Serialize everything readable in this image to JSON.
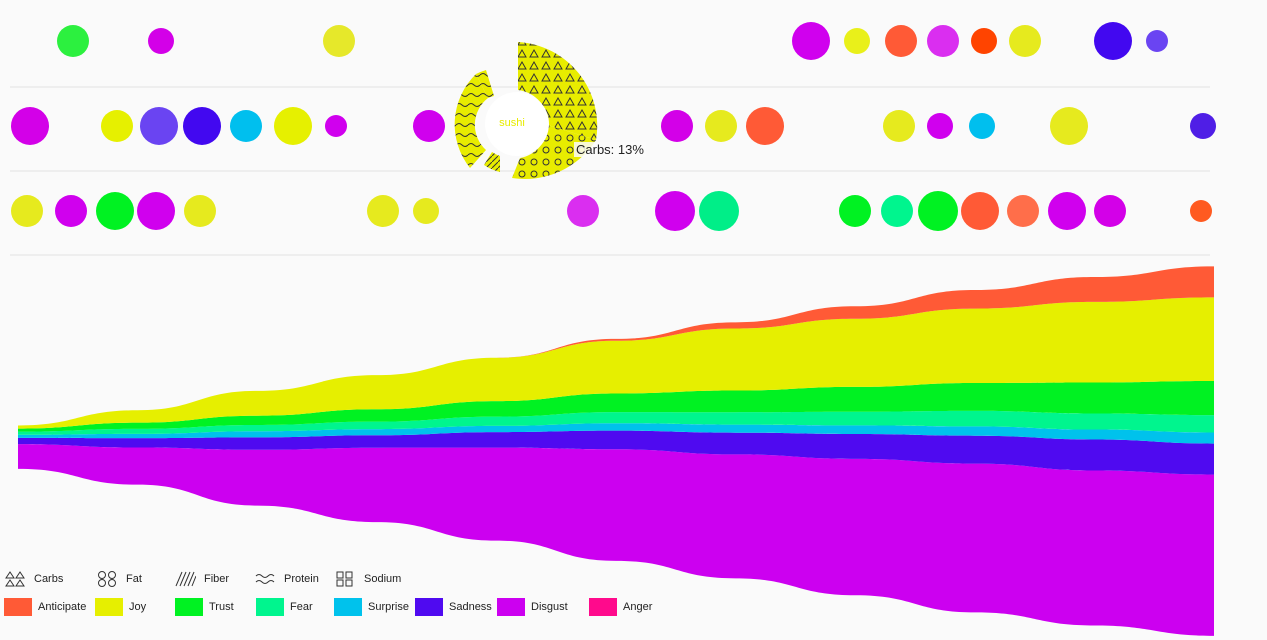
{
  "tooltip": {
    "text": "Carbs: 13%"
  },
  "selected_food": {
    "label": "sushi",
    "color": "#e8ec00"
  },
  "nutrients": [
    {
      "name": "Carbs",
      "icon": "triangles-icon"
    },
    {
      "name": "Fat",
      "icon": "circles-icon"
    },
    {
      "name": "Fiber",
      "icon": "diagonal-lines-icon"
    },
    {
      "name": "Protein",
      "icon": "waves-icon"
    },
    {
      "name": "Sodium",
      "icon": "squares-icon"
    }
  ],
  "chart_data": {
    "type": "area",
    "stacked": "streamgraph",
    "legend_placement": "bottom-left",
    "grid": false,
    "emotions": [
      {
        "name": "Anticipate",
        "color": "#ff5a36"
      },
      {
        "name": "Joy",
        "color": "#e6ef00"
      },
      {
        "name": "Trust",
        "color": "#00f222"
      },
      {
        "name": "Fear",
        "color": "#00f58e"
      },
      {
        "name": "Surprise",
        "color": "#00c2ec"
      },
      {
        "name": "Sadness",
        "color": "#4f0af0"
      },
      {
        "name": "Disgust",
        "color": "#cc00f0"
      },
      {
        "name": "Anger",
        "color": "#ff0a8c"
      }
    ],
    "series": [
      {
        "name": "Disgust",
        "values": [
          4,
          6,
          9,
          12,
          15,
          18,
          20,
          22,
          24,
          25,
          26
        ]
      },
      {
        "name": "Sadness",
        "values": [
          1,
          1.5,
          2,
          2,
          2.5,
          3,
          3.5,
          4,
          4.5,
          5,
          5
        ]
      },
      {
        "name": "Surprise",
        "values": [
          0.5,
          0.7,
          1,
          1,
          1,
          1.2,
          1.3,
          1.4,
          1.5,
          1.6,
          1.8
        ]
      },
      {
        "name": "Fear",
        "values": [
          0.5,
          0.8,
          1,
          1.2,
          1.5,
          1.8,
          2,
          2.2,
          2.5,
          2.6,
          2.8
        ]
      },
      {
        "name": "Trust",
        "values": [
          0.5,
          1,
          1.5,
          2,
          2.5,
          3,
          3.5,
          4,
          4.5,
          5,
          5.5
        ]
      },
      {
        "name": "Joy",
        "values": [
          0.5,
          2,
          4,
          5.5,
          7,
          8.5,
          10,
          11,
          12,
          13,
          13.5
        ]
      },
      {
        "name": "Anticipate",
        "values": [
          0,
          0,
          0,
          0,
          0,
          0.3,
          1,
          2,
          3,
          4,
          5
        ]
      },
      {
        "name": "Anger",
        "values": [
          0,
          0,
          0,
          0,
          0,
          0,
          0,
          0,
          0,
          0,
          0
        ]
      }
    ],
    "food_rows": [
      [
        {
          "c": "#2cf03f",
          "s": 3
        },
        {
          "c": "#d300e8",
          "s": 2
        },
        {
          "c": "#e6e82a",
          "s": 3
        },
        {
          "c": "#d000ee",
          "s": 5
        },
        {
          "c": "#e9f01a",
          "s": 2
        },
        {
          "c": "#ff5a36",
          "s": 3
        },
        {
          "c": "#da2ef0",
          "s": 3
        },
        {
          "c": "#ff4400",
          "s": 2
        },
        {
          "c": "#e6ea1e",
          "s": 3
        },
        {
          "c": "#4208f0",
          "s": 5
        },
        {
          "c": "#6a44f2",
          "s": 1
        }
      ],
      [
        {
          "c": "#d300e8",
          "s": 5
        },
        {
          "c": "#e6f000",
          "s": 3
        },
        {
          "c": "#6a44f2",
          "s": 5
        },
        {
          "c": "#4208f0",
          "s": 5
        },
        {
          "c": "#00bfee",
          "s": 3
        },
        {
          "c": "#e6f000",
          "s": 5
        },
        {
          "c": "#d000ee",
          "s": 1
        },
        {
          "c": "#d000ee",
          "s": 3
        },
        {
          "c": "#d300e8",
          "s": 3
        },
        {
          "c": "#e6ea1e",
          "s": 3
        },
        {
          "c": "#ff5a36",
          "s": 5
        },
        {
          "c": "#e6ea1e",
          "s": 3
        },
        {
          "c": "#d000ee",
          "s": 2
        },
        {
          "c": "#00bfee",
          "s": 2
        },
        {
          "c": "#e6ea1e",
          "s": 5
        },
        {
          "c": "#4f1ee6",
          "s": 2
        }
      ],
      [
        {
          "c": "#e6ea1e",
          "s": 3
        },
        {
          "c": "#d000ee",
          "s": 3
        },
        {
          "c": "#00f222",
          "s": 5
        },
        {
          "c": "#d000ee",
          "s": 5
        },
        {
          "c": "#e6ea1e",
          "s": 3
        },
        {
          "c": "#e6ea1e",
          "s": 3
        },
        {
          "c": "#e6ea1e",
          "s": 2
        },
        {
          "c": "#da2ef0",
          "s": 3
        },
        {
          "c": "#d000ee",
          "s": 6
        },
        {
          "c": "#00ee88",
          "s": 6
        },
        {
          "c": "#00f222",
          "s": 3
        },
        {
          "c": "#00f58e",
          "s": 3
        },
        {
          "c": "#00f222",
          "s": 6
        },
        {
          "c": "#ff5a36",
          "s": 5
        },
        {
          "c": "#ff6e4a",
          "s": 3
        },
        {
          "c": "#d000ee",
          "s": 5
        },
        {
          "c": "#d300e8",
          "s": 3
        },
        {
          "c": "#ff5a20",
          "s": 1
        }
      ]
    ]
  }
}
